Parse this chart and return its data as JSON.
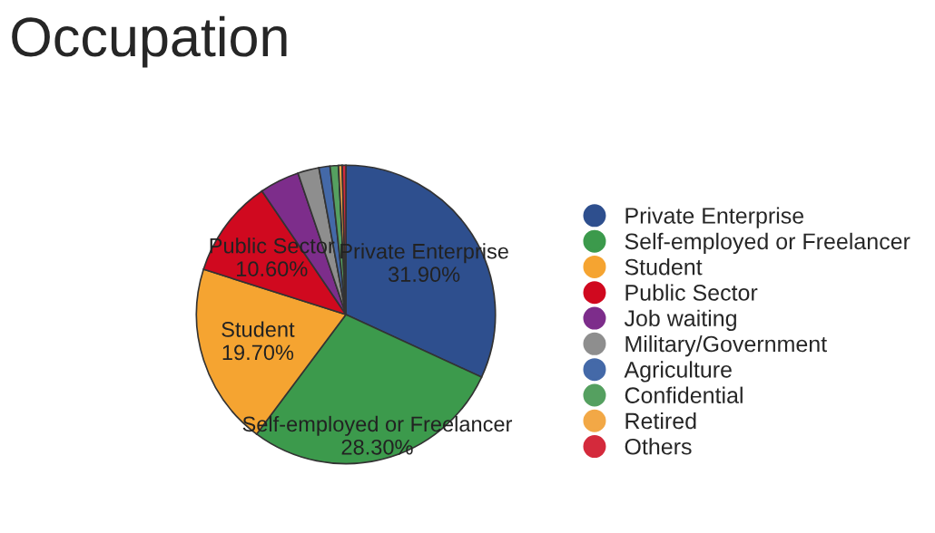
{
  "chart_data": {
    "type": "pie",
    "title": "Occupation",
    "categories": [
      "Private Enterprise",
      "Self-employed or Freelancer",
      "Student",
      "Public Sector",
      "Job waiting",
      "Military/Government",
      "Agriculture",
      "Confidential",
      "Retired",
      "Others"
    ],
    "values": [
      31.9,
      28.3,
      19.7,
      10.6,
      4.3,
      2.3,
      1.2,
      0.9,
      0.4,
      0.4
    ],
    "value_labels": [
      "31.90%",
      "28.30%",
      "19.70%",
      "10.60%",
      null,
      null,
      null,
      null,
      null,
      null
    ],
    "colors": [
      "#2e4f8e",
      "#3c9a4c",
      "#f5a431",
      "#d0091f",
      "#7d2d8b",
      "#8e8e8e",
      "#4469a8",
      "#55a060",
      "#f2a846",
      "#d42a3c"
    ],
    "legend": "right"
  }
}
